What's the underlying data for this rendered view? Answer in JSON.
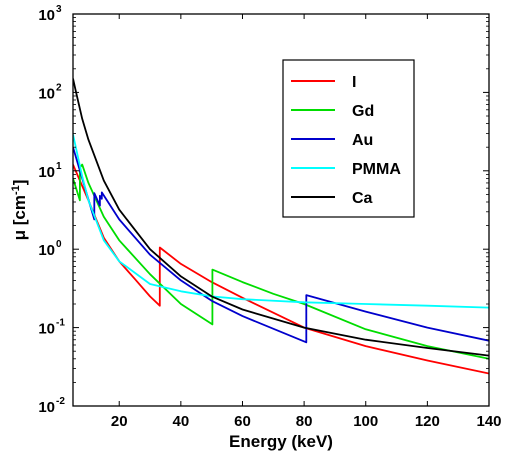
{
  "chart_data": {
    "type": "line",
    "title": "",
    "xlabel": "Energy (keV)",
    "ylabel_base": "μ [cm",
    "ylabel_exp": "-1",
    "ylabel_close": "]",
    "xlim": [
      5,
      140
    ],
    "ylim": [
      0.01,
      1000
    ],
    "yscale": "log",
    "grid": false,
    "legend_position": "top-right",
    "x_ticks": [
      20,
      40,
      60,
      80,
      100,
      120,
      140
    ],
    "x_tick_labels": [
      "20",
      "40",
      "60",
      "80",
      "100",
      "120",
      "140"
    ],
    "y_ticks": [
      0.01,
      0.1,
      1,
      10,
      100,
      1000
    ],
    "y_tick_base": "10",
    "y_tick_exps": [
      "-2",
      "-1",
      "0",
      "1",
      "2",
      "3"
    ],
    "series": [
      {
        "name": "I",
        "color": "#ff0000",
        "x": [
          5,
          10,
          15,
          20,
          25,
          30,
          33.17,
          33.17,
          40,
          50,
          60,
          80,
          100,
          120,
          140
        ],
        "y": [
          12,
          4.2,
          1.4,
          0.7,
          0.42,
          0.25,
          0.19,
          1.05,
          0.65,
          0.38,
          0.24,
          0.1,
          0.058,
          0.038,
          0.026
        ]
      },
      {
        "name": "Gd",
        "color": "#00dd00",
        "x": [
          5,
          7.24,
          7.24,
          8,
          10,
          15,
          20,
          30,
          40,
          50.24,
          50.24,
          60,
          70,
          80,
          100,
          120,
          140
        ],
        "y": [
          8,
          4.2,
          11,
          12,
          7,
          2.6,
          1.3,
          0.48,
          0.2,
          0.11,
          0.55,
          0.38,
          0.27,
          0.2,
          0.095,
          0.058,
          0.04
        ]
      },
      {
        "name": "Au",
        "color": "#0000cc",
        "x": [
          5,
          8,
          11.92,
          11.92,
          13.73,
          13.73,
          14.35,
          14.35,
          16,
          20,
          30,
          40,
          50,
          60,
          80.72,
          80.72,
          100,
          120,
          140
        ],
        "y": [
          20,
          8,
          2.4,
          5.2,
          3.6,
          4.8,
          4.4,
          5.3,
          4.2,
          2.4,
          0.85,
          0.4,
          0.22,
          0.14,
          0.065,
          0.26,
          0.16,
          0.1,
          0.068
        ]
      },
      {
        "name": "PMMA",
        "color": "#00ffff",
        "x": [
          5,
          8,
          10,
          15,
          20,
          30,
          40,
          50,
          60,
          80,
          100,
          120,
          140
        ],
        "y": [
          29,
          8.5,
          4.2,
          1.3,
          0.7,
          0.36,
          0.29,
          0.25,
          0.23,
          0.21,
          0.2,
          0.19,
          0.18
        ]
      },
      {
        "name": "Ca",
        "color": "#000000",
        "x": [
          5,
          6,
          8,
          10,
          15,
          20,
          30,
          40,
          50,
          60,
          80,
          100,
          120,
          140
        ],
        "y": [
          150,
          100,
          46,
          25,
          7.5,
          3.2,
          1,
          0.45,
          0.25,
          0.17,
          0.1,
          0.07,
          0.055,
          0.044
        ]
      }
    ]
  }
}
